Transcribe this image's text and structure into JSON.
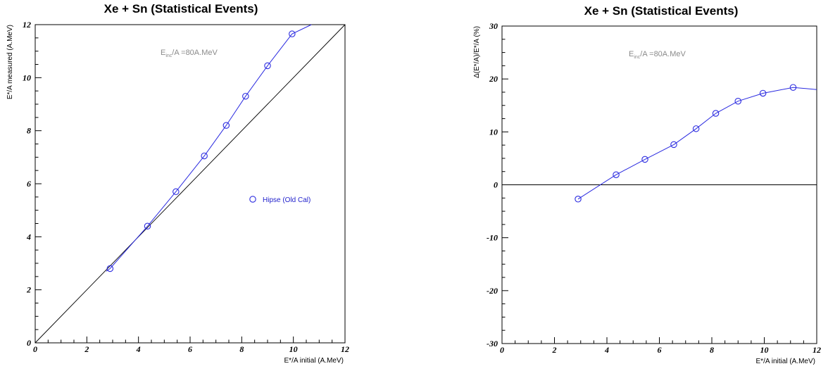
{
  "chart_data": [
    {
      "type": "line",
      "title": "Xe + Sn (Statistical Events)",
      "xlabel": "E*/A initial (A.MeV)",
      "ylabel": "E*/A measured (A.MeV)",
      "xlim": [
        0,
        12
      ],
      "ylim": [
        0,
        12
      ],
      "xticks": [
        "0",
        "2",
        "4",
        "6",
        "8",
        "10",
        "12"
      ],
      "yticks": [
        "0",
        "2",
        "4",
        "6",
        "8",
        "10",
        "12"
      ],
      "annotation": {
        "main": "E",
        "sub": "inc",
        "rest": "/A =80A.MeV"
      },
      "legend": {
        "label": "Hipse (Old Cal)",
        "placement": "right-middle"
      },
      "reference_line": {
        "x": [
          0,
          12
        ],
        "y": [
          0,
          12
        ]
      },
      "series": [
        {
          "name": "Hipse (Old Cal)",
          "color": "#2a2ae0",
          "marker": "open-circle",
          "x": [
            2.9,
            4.35,
            5.45,
            6.55,
            7.4,
            8.15,
            9.0,
            9.95
          ],
          "y": [
            2.8,
            4.4,
            5.7,
            7.05,
            8.2,
            9.3,
            10.45,
            11.65
          ],
          "line_x": [
            2.75,
            2.9,
            4.35,
            5.45,
            6.55,
            7.4,
            8.15,
            9.0,
            9.95,
            10.7
          ],
          "line_y": [
            2.7,
            2.8,
            4.4,
            5.7,
            7.05,
            8.2,
            9.3,
            10.45,
            11.65,
            12.0
          ]
        }
      ]
    },
    {
      "type": "line",
      "title": "Xe + Sn (Statistical Events)",
      "xlabel": "E*/A initial (A.MeV)",
      "ylabel": "Δ(E*/A)/E*/A (%)",
      "xlim": [
        0,
        12
      ],
      "ylim": [
        -30,
        30
      ],
      "xticks": [
        "0",
        "2",
        "4",
        "6",
        "8",
        "10",
        "12"
      ],
      "yticks": [
        "-30",
        "-20",
        "-10",
        "0",
        "10",
        "20",
        "30"
      ],
      "annotation": {
        "main": "E",
        "sub": "inc",
        "rest": "/A =80A.MeV"
      },
      "reference_line": {
        "x": [
          0,
          12
        ],
        "y": [
          0,
          0
        ]
      },
      "series": [
        {
          "color": "#2a2ae0",
          "marker": "open-circle",
          "x": [
            2.9,
            4.35,
            5.45,
            6.55,
            7.4,
            8.15,
            9.0,
            9.95,
            11.1
          ],
          "y": [
            -2.7,
            1.9,
            4.8,
            7.6,
            10.6,
            13.5,
            15.8,
            17.3,
            18.4
          ],
          "line_x": [
            2.9,
            4.35,
            5.45,
            6.55,
            7.4,
            8.15,
            9.0,
            9.95,
            11.1,
            12.0
          ],
          "line_y": [
            -2.7,
            1.9,
            4.8,
            7.6,
            10.6,
            13.5,
            15.8,
            17.3,
            18.4,
            18.0
          ]
        }
      ]
    }
  ]
}
